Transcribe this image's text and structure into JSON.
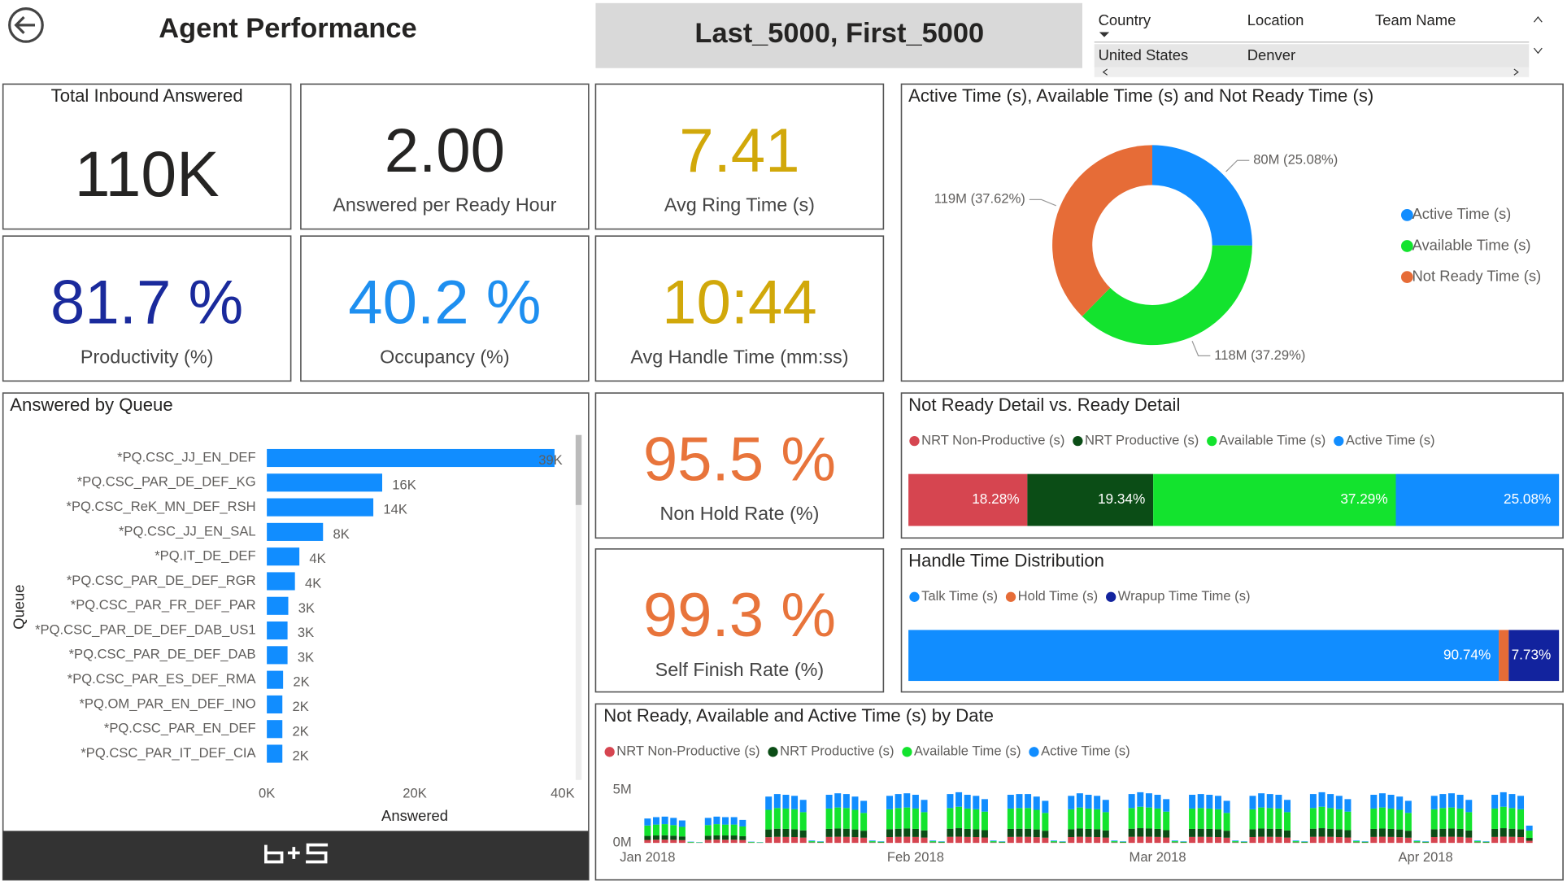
{
  "header": {
    "title": "Agent Performance",
    "filter": "Last_5000, First_5000"
  },
  "slicer": {
    "columns": [
      "Country",
      "Location",
      "Team Name"
    ],
    "row": [
      "United States",
      "Denver"
    ]
  },
  "cards": [
    {
      "value": "110K",
      "label": "Total Inbound Answered",
      "color": "#252423"
    },
    {
      "value": "2.00",
      "label": "Answered per Ready Hour",
      "color": "#252423"
    },
    {
      "value": "7.41",
      "label": "Avg Ring Time (s)",
      "color": "#d1a80a"
    },
    {
      "value": "81.7 %",
      "label": "Productivity (%)",
      "color": "#1a2a9c"
    },
    {
      "value": "40.2 %",
      "label": "Occupancy (%)",
      "color": "#1e8ff0"
    },
    {
      "value": "10:44",
      "label": "Avg Handle Time (mm:ss)",
      "color": "#d1a80a"
    },
    {
      "value": "95.5 %",
      "label": "Non Hold Rate (%)",
      "color": "#e8743b"
    },
    {
      "value": "99.3 %",
      "label": "Self Finish Rate (%)",
      "color": "#e8743b"
    }
  ],
  "chart_data": [
    {
      "type": "pie",
      "title": "Active Time (s), Available Time (s) and Not Ready Time (s)",
      "categories": [
        "Active Time (s)",
        "Available Time (s)",
        "Not Ready Time (s)"
      ],
      "values": [
        25.08,
        37.29,
        37.62
      ],
      "value_labels": [
        "80M (25.08%)",
        "118M (37.29%)",
        "119M (37.62%)"
      ],
      "colors": [
        "#118dff",
        "#13e32e",
        "#e66c37"
      ],
      "donut": true,
      "legend": "right"
    },
    {
      "type": "bar",
      "orientation": "horizontal",
      "title": "Answered by Queue",
      "categories": [
        "*PQ.CSC_JJ_EN_DEF",
        "*PQ.CSC_PAR_DE_DEF_KG",
        "*PQ.CSC_ReK_MN_DEF_RSH",
        "*PQ.CSC_JJ_EN_SAL",
        "*PQ.IT_DE_DEF",
        "*PQ.CSC_PAR_DE_DEF_RGR",
        "*PQ.CSC_PAR_FR_DEF_PAR",
        "*PQ.CSC_PAR_DE_DEF_DAB_US1",
        "*PQ.CSC_PAR_DE_DEF_DAB",
        "*PQ.CSC_PAR_ES_DEF_RMA",
        "*PQ.OM_PAR_EN_DEF_INO",
        "*PQ.CSC_PAR_EN_DEF",
        "*PQ.CSC_PAR_IT_DEF_CIA"
      ],
      "values": [
        38900,
        15600,
        14400,
        7600,
        4400,
        3800,
        2900,
        2800,
        2800,
        2200,
        2100,
        2100,
        2100
      ],
      "value_labels": [
        "39K",
        "16K",
        "14K",
        "8K",
        "4K",
        "4K",
        "3K",
        "3K",
        "3K",
        "2K",
        "2K",
        "2K",
        "2K"
      ],
      "color": "#118dff",
      "xlim": [
        0,
        40000
      ],
      "xticks": [
        {
          "value": 0,
          "label": "0K"
        },
        {
          "value": 20000,
          "label": "20K"
        },
        {
          "value": 40000,
          "label": "40K"
        }
      ],
      "xlabel": "Answered",
      "ylabel": "Queue"
    },
    {
      "type": "bar",
      "orientation": "horizontal",
      "stacked": "percent",
      "title": "Not Ready Detail vs. Ready Detail",
      "series": [
        {
          "name": "NRT Non-Productive (s)",
          "color": "#d64550",
          "values": [
            18.28
          ],
          "value_labels": [
            "18.28%"
          ]
        },
        {
          "name": "NRT Productive (s)",
          "color": "#0b4d16",
          "values": [
            19.34
          ],
          "value_labels": [
            "19.34%"
          ]
        },
        {
          "name": "Available Time (s)",
          "color": "#13e32e",
          "values": [
            37.29
          ],
          "value_labels": [
            "37.29%"
          ]
        },
        {
          "name": "Active Time (s)",
          "color": "#118dff",
          "values": [
            25.08
          ],
          "value_labels": [
            "25.08%"
          ]
        }
      ],
      "legend": "top"
    },
    {
      "type": "bar",
      "orientation": "horizontal",
      "stacked": "percent",
      "title": "Handle Time Distribution",
      "series": [
        {
          "name": "Talk Time (s)",
          "color": "#118dff",
          "values": [
            90.74
          ],
          "value_labels": [
            "90.74%"
          ]
        },
        {
          "name": "Hold Time (s)",
          "color": "#e66c37",
          "values": [
            1.53
          ]
        },
        {
          "name": "Wrapup Time Time (s)",
          "color": "#12239e",
          "values": [
            7.73
          ],
          "value_labels": [
            "7.73%"
          ]
        }
      ],
      "legend": "top"
    },
    {
      "type": "bar",
      "stacked": "values",
      "title": "Not Ready, Available and Active Time (s) by Date",
      "categories": [
        "Jan 2018",
        null,
        null,
        null,
        null,
        null,
        null,
        null,
        null,
        null,
        null,
        null,
        null,
        null,
        null,
        null,
        null,
        null,
        null,
        null,
        null,
        null,
        null,
        null,
        null,
        null,
        null,
        null,
        null,
        null,
        null,
        "Feb 2018",
        null,
        null,
        null,
        null,
        null,
        null,
        null,
        null,
        null,
        null,
        null,
        null,
        null,
        null,
        null,
        null,
        null,
        null,
        null,
        null,
        null,
        null,
        null,
        null,
        null,
        null,
        null,
        "Mar 2018",
        null,
        null,
        null,
        null,
        null,
        null,
        null,
        null,
        null,
        null,
        null,
        null,
        null,
        null,
        null,
        null,
        null,
        null,
        null,
        null,
        null,
        null,
        null,
        null,
        null,
        null,
        null,
        null,
        null,
        null,
        "Apr 2018",
        null,
        null,
        null,
        null,
        null,
        null,
        null,
        null,
        null,
        null,
        null,
        null
      ],
      "ylim": [
        0,
        5000000
      ],
      "yticks": [
        {
          "value": 0,
          "label": "0M"
        },
        {
          "value": 5000000,
          "label": "5M"
        }
      ],
      "series": [
        {
          "name": "NRT Non-Productive (s)",
          "color": "#d64550",
          "values": [
            280000,
            300000,
            310000,
            290000,
            260000,
            15000,
            10000,
            290000,
            310000,
            300000,
            300000,
            270000,
            15000,
            10000,
            540000,
            570000,
            560000,
            550000,
            500000,
            30000,
            20000,
            560000,
            580000,
            570000,
            540000,
            490000,
            30000,
            20000,
            550000,
            570000,
            580000,
            560000,
            500000,
            30000,
            20000,
            570000,
            590000,
            560000,
            550000,
            510000,
            30000,
            20000,
            560000,
            570000,
            570000,
            540000,
            490000,
            30000,
            20000,
            550000,
            580000,
            560000,
            550000,
            500000,
            30000,
            20000,
            570000,
            590000,
            580000,
            560000,
            510000,
            30000,
            20000,
            560000,
            570000,
            560000,
            550000,
            490000,
            30000,
            20000,
            550000,
            580000,
            570000,
            560000,
            500000,
            30000,
            20000,
            570000,
            590000,
            570000,
            550000,
            510000,
            30000,
            20000,
            560000,
            580000,
            560000,
            540000,
            490000,
            30000,
            20000,
            550000,
            570000,
            580000,
            560000,
            500000,
            30000,
            20000,
            560000,
            590000,
            570000,
            550000,
            200000
          ]
        },
        {
          "name": "NRT Productive (s)",
          "color": "#0b4d16",
          "values": [
            380000,
            400000,
            410000,
            390000,
            350000,
            20000,
            15000,
            390000,
            410000,
            400000,
            400000,
            360000,
            20000,
            15000,
            730000,
            770000,
            760000,
            740000,
            680000,
            40000,
            30000,
            760000,
            780000,
            770000,
            730000,
            660000,
            40000,
            30000,
            740000,
            770000,
            780000,
            760000,
            680000,
            40000,
            30000,
            770000,
            800000,
            760000,
            740000,
            690000,
            40000,
            30000,
            760000,
            770000,
            770000,
            730000,
            660000,
            40000,
            30000,
            740000,
            780000,
            760000,
            740000,
            680000,
            40000,
            30000,
            770000,
            800000,
            780000,
            760000,
            690000,
            40000,
            30000,
            760000,
            770000,
            760000,
            740000,
            660000,
            40000,
            30000,
            740000,
            780000,
            770000,
            760000,
            680000,
            40000,
            30000,
            770000,
            800000,
            770000,
            740000,
            690000,
            40000,
            30000,
            760000,
            780000,
            760000,
            730000,
            660000,
            40000,
            30000,
            740000,
            770000,
            780000,
            760000,
            680000,
            40000,
            30000,
            760000,
            800000,
            770000,
            740000,
            270000
          ]
        },
        {
          "name": "Available Time (s)",
          "color": "#13e32e",
          "values": [
            980000,
            1030000,
            1050000,
            1000000,
            900000,
            50000,
            30000,
            1000000,
            1050000,
            1030000,
            1030000,
            920000,
            50000,
            30000,
            1850000,
            1950000,
            1920000,
            1880000,
            1720000,
            90000,
            60000,
            1920000,
            1980000,
            1950000,
            1850000,
            1680000,
            90000,
            60000,
            1880000,
            1950000,
            1980000,
            1920000,
            1720000,
            90000,
            60000,
            1950000,
            2020000,
            1920000,
            1880000,
            1750000,
            90000,
            60000,
            1920000,
            1950000,
            1950000,
            1850000,
            1680000,
            90000,
            60000,
            1880000,
            1980000,
            1920000,
            1880000,
            1720000,
            90000,
            60000,
            1950000,
            2020000,
            1980000,
            1920000,
            1750000,
            90000,
            60000,
            1920000,
            1950000,
            1920000,
            1880000,
            1680000,
            90000,
            60000,
            1880000,
            1980000,
            1950000,
            1920000,
            1720000,
            90000,
            60000,
            1950000,
            2020000,
            1950000,
            1880000,
            1750000,
            90000,
            60000,
            1920000,
            1980000,
            1920000,
            1850000,
            1680000,
            90000,
            60000,
            1880000,
            1950000,
            1980000,
            1920000,
            1720000,
            90000,
            60000,
            1920000,
            2020000,
            1950000,
            1880000,
            690000
          ]
        },
        {
          "name": "Active Time (s)",
          "color": "#118dff",
          "values": [
            660000,
            700000,
            710000,
            680000,
            610000,
            30000,
            20000,
            680000,
            710000,
            700000,
            700000,
            620000,
            30000,
            20000,
            1250000,
            1320000,
            1300000,
            1270000,
            1160000,
            60000,
            40000,
            1300000,
            1340000,
            1320000,
            1250000,
            1140000,
            60000,
            40000,
            1270000,
            1320000,
            1340000,
            1300000,
            1160000,
            60000,
            40000,
            1320000,
            1370000,
            1300000,
            1270000,
            1180000,
            60000,
            40000,
            1300000,
            1320000,
            1320000,
            1250000,
            1140000,
            60000,
            40000,
            1270000,
            1340000,
            1300000,
            1270000,
            1160000,
            60000,
            40000,
            1320000,
            1370000,
            1340000,
            1300000,
            1180000,
            60000,
            40000,
            1300000,
            1320000,
            1300000,
            1270000,
            1140000,
            60000,
            40000,
            1270000,
            1340000,
            1320000,
            1300000,
            1160000,
            60000,
            40000,
            1320000,
            1370000,
            1320000,
            1270000,
            1180000,
            60000,
            40000,
            1300000,
            1340000,
            1300000,
            1250000,
            1140000,
            60000,
            40000,
            1270000,
            1320000,
            1340000,
            1300000,
            1160000,
            60000,
            40000,
            1300000,
            1370000,
            1320000,
            1270000,
            470000
          ]
        }
      ],
      "legend": "top"
    }
  ]
}
